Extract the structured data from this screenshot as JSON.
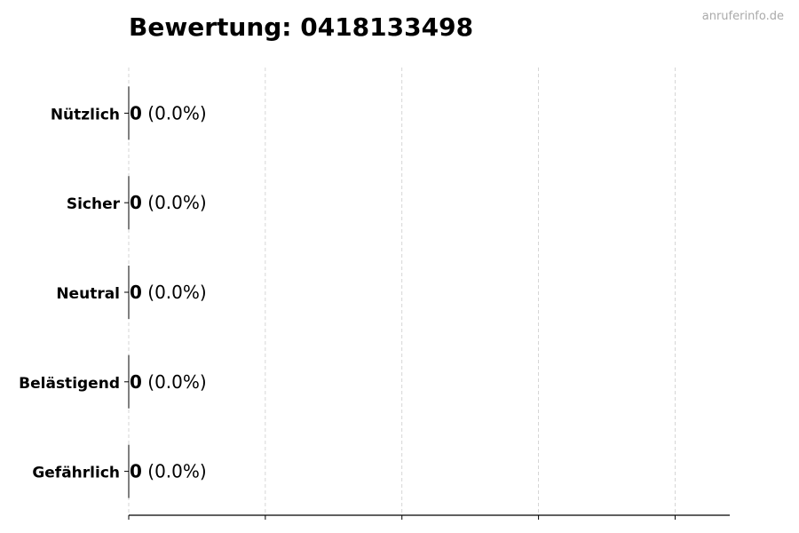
{
  "watermark": "anruferinfo.de",
  "chart_data": {
    "type": "bar",
    "orientation": "horizontal",
    "title": "Bewertung: 0418133498",
    "categories": [
      "Nützlich",
      "Sicher",
      "Neutral",
      "Belästigend",
      "Gefährlich"
    ],
    "values": [
      0,
      0,
      0,
      0,
      0
    ],
    "value_labels": [
      "0",
      "0",
      "0",
      "0",
      "0"
    ],
    "percent_labels": [
      "(0.0%)",
      "(0.0%)",
      "(0.0%)",
      "(0.0%)",
      "(0.0%)"
    ],
    "xlim": [
      0,
      4.4
    ],
    "x_ticks": [
      0,
      1,
      2,
      3,
      4
    ],
    "x_tick_labels_shown": false,
    "grid": "x, dashed",
    "colors": {
      "bar_edge": "#000000",
      "grid": "#cccccc",
      "watermark": "#aaaaaa"
    }
  }
}
